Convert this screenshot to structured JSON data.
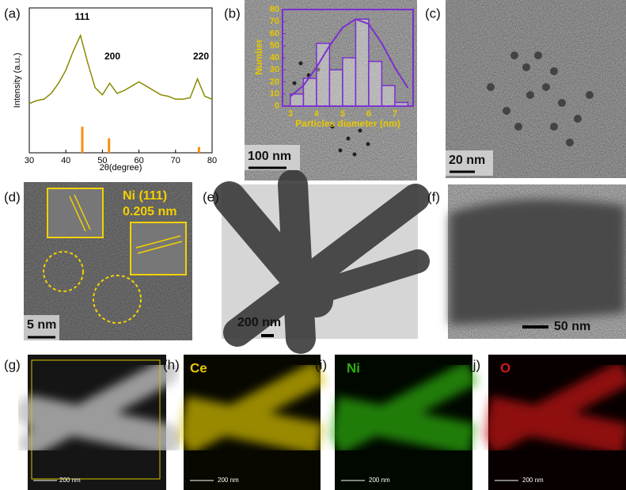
{
  "panel_labels": [
    "(a)",
    "(b)",
    "(c)",
    "(d)",
    "(e)",
    "(f)",
    "(g)",
    "(h)",
    "(i)",
    "(j)"
  ],
  "xrd": {
    "type": "line",
    "xlabel": "2θ(degree)",
    "ylabel": "Intensity (a.u.)",
    "x": [
      30,
      32,
      34,
      36,
      38,
      40,
      42,
      44,
      46,
      48,
      50,
      52,
      54,
      56,
      58,
      60,
      62,
      64,
      66,
      68,
      70,
      72,
      74,
      76,
      78,
      80
    ],
    "values": [
      34,
      36,
      37,
      41,
      48,
      57,
      70,
      81,
      62,
      45,
      40,
      48,
      41,
      43,
      46,
      49,
      46,
      43,
      40,
      39,
      37,
      37,
      38,
      51,
      39,
      37
    ],
    "color": "#8a8a00",
    "xlim": [
      30,
      80
    ],
    "ylim": [
      0,
      100
    ],
    "xticks": [
      30,
      40,
      50,
      60,
      70,
      80
    ],
    "peaks": [
      "111",
      "200",
      "220"
    ],
    "reference": {
      "x": [
        44.5,
        51.8,
        76.4
      ],
      "values": [
        18,
        10,
        4
      ],
      "color": "#f5900f"
    }
  },
  "histogram": {
    "type": "histogram",
    "xlabel": "Particles diameter (nm)",
    "ylabel": "Number",
    "bins": [
      3.0,
      3.5,
      4.0,
      4.5,
      5.0,
      5.5,
      6.0,
      6.5,
      7.0,
      7.5
    ],
    "values": [
      10,
      23,
      52,
      30,
      40,
      72,
      37,
      17,
      3
    ],
    "fit": {
      "x": [
        3.0,
        3.5,
        4.0,
        4.5,
        5.0,
        5.5,
        6.0,
        6.5,
        7.0,
        7.5
      ],
      "values": [
        8,
        17,
        32,
        50,
        65,
        72,
        68,
        52,
        32,
        15
      ]
    },
    "color": "#7b2fd0",
    "label_color": "#e8c800",
    "xlim": [
      2.7,
      7.7
    ],
    "ylim": [
      0,
      80
    ],
    "xticks": [
      3,
      4,
      5,
      6,
      7
    ],
    "yticks": [
      0,
      10,
      20,
      30,
      40,
      50,
      60,
      70,
      80
    ]
  },
  "scale_bars": {
    "b": "100 nm",
    "c": "20 nm",
    "d": "5 nm",
    "e": "200 nm",
    "f": "50 nm",
    "g": "200 nm",
    "h": "200 nm",
    "i": "200 nm",
    "j": "200 nm"
  },
  "lattice": {
    "plane": "Ni (111)",
    "spacing": "0.205 nm"
  },
  "elements": {
    "h": "Ce",
    "i": "Ni",
    "j": "O"
  }
}
